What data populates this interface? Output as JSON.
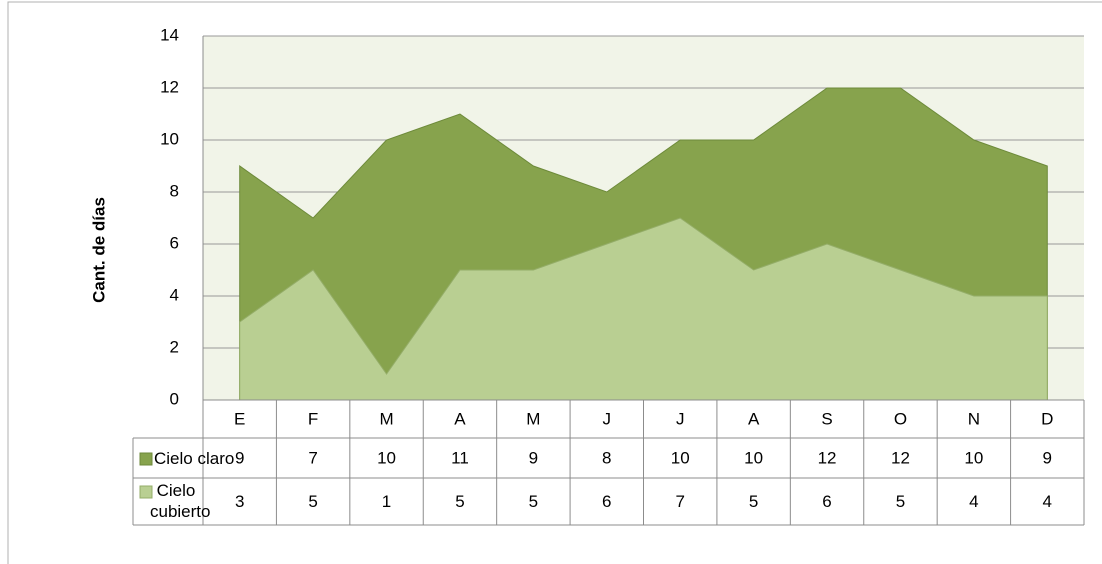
{
  "chart_data": {
    "type": "area",
    "y_label": "Cant. de días",
    "categories": [
      "E",
      "F",
      "M",
      "A",
      "M",
      "J",
      "J",
      "A",
      "S",
      "O",
      "N",
      "D"
    ],
    "series": [
      {
        "name": "Cielo claro",
        "color": "#87a34d",
        "values": [
          9,
          7,
          10,
          11,
          9,
          8,
          10,
          10,
          12,
          12,
          10,
          9
        ]
      },
      {
        "name": "Cielo cubierto",
        "color": "#b9cf92",
        "values": [
          3,
          5,
          1,
          5,
          5,
          6,
          7,
          5,
          6,
          5,
          4,
          4
        ]
      }
    ],
    "ylim": [
      0,
      14
    ],
    "yticks": [
      0,
      2,
      4,
      6,
      8,
      10,
      12,
      14
    ],
    "grid": true
  }
}
